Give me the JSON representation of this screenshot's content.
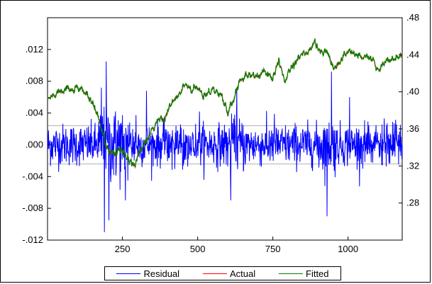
{
  "chart_data": {
    "type": "line",
    "title": "",
    "xlabel": "",
    "ylabel": "",
    "x_range": [
      1,
      1180
    ],
    "x_ticks": [
      "250",
      "500",
      "750",
      "1000"
    ],
    "left_axis": {
      "ylim": [
        -0.012,
        0.016
      ],
      "ticks": [
        ".012",
        ".008",
        ".004",
        ".000",
        "-.004",
        "-.008",
        "-.012"
      ]
    },
    "right_axis": {
      "ylim": [
        0.24,
        0.48
      ],
      "ticks": [
        ".48",
        ".44",
        ".40",
        ".36",
        ".32",
        ".28"
      ]
    },
    "residual_reference_lines": [
      0.0024,
      -0.0024
    ],
    "series": [
      {
        "name": "Residual",
        "axis": "left",
        "color": "#0000ff",
        "description": "high-frequency residuals, amplitude mostly within ±0.003, spikes to about +0.0105 near x=195 and -0.011 near x=190",
        "noise_sd": 0.0013,
        "notable_points": [
          {
            "x": 180,
            "y": 0.0072
          },
          {
            "x": 190,
            "y": -0.011
          },
          {
            "x": 196,
            "y": 0.0105
          },
          {
            "x": 205,
            "y": -0.0095
          },
          {
            "x": 260,
            "y": -0.007
          },
          {
            "x": 330,
            "y": 0.0068
          },
          {
            "x": 610,
            "y": -0.007
          },
          {
            "x": 630,
            "y": 0.0072
          },
          {
            "x": 945,
            "y": 0.0092
          },
          {
            "x": 930,
            "y": -0.009
          },
          {
            "x": 1005,
            "y": 0.006
          }
        ]
      },
      {
        "name": "Actual",
        "axis": "right",
        "color": "#ff0000",
        "anchors": [
          [
            1,
            0.392
          ],
          [
            20,
            0.396
          ],
          [
            50,
            0.404
          ],
          [
            75,
            0.401
          ],
          [
            100,
            0.403
          ],
          [
            130,
            0.398
          ],
          [
            150,
            0.388
          ],
          [
            170,
            0.372
          ],
          [
            190,
            0.348
          ],
          [
            210,
            0.334
          ],
          [
            240,
            0.337
          ],
          [
            260,
            0.33
          ],
          [
            290,
            0.322
          ],
          [
            310,
            0.336
          ],
          [
            340,
            0.352
          ],
          [
            370,
            0.37
          ],
          [
            390,
            0.372
          ],
          [
            410,
            0.385
          ],
          [
            440,
            0.398
          ],
          [
            460,
            0.408
          ],
          [
            480,
            0.401
          ],
          [
            500,
            0.404
          ],
          [
            520,
            0.397
          ],
          [
            550,
            0.403
          ],
          [
            580,
            0.395
          ],
          [
            600,
            0.378
          ],
          [
            620,
            0.392
          ],
          [
            640,
            0.413
          ],
          [
            660,
            0.42
          ],
          [
            690,
            0.416
          ],
          [
            720,
            0.421
          ],
          [
            750,
            0.416
          ],
          [
            770,
            0.431
          ],
          [
            790,
            0.412
          ],
          [
            810,
            0.427
          ],
          [
            840,
            0.44
          ],
          [
            870,
            0.443
          ],
          [
            890,
            0.454
          ],
          [
            910,
            0.441
          ],
          [
            930,
            0.445
          ],
          [
            950,
            0.424
          ],
          [
            975,
            0.434
          ],
          [
            1000,
            0.445
          ],
          [
            1025,
            0.44
          ],
          [
            1050,
            0.438
          ],
          [
            1080,
            0.436
          ],
          [
            1100,
            0.423
          ],
          [
            1125,
            0.433
          ],
          [
            1150,
            0.434
          ],
          [
            1180,
            0.44
          ]
        ]
      },
      {
        "name": "Fitted",
        "axis": "right",
        "color": "#008000",
        "anchors": [
          [
            1,
            0.392
          ],
          [
            20,
            0.396
          ],
          [
            50,
            0.404
          ],
          [
            75,
            0.401
          ],
          [
            100,
            0.403
          ],
          [
            130,
            0.398
          ],
          [
            150,
            0.388
          ],
          [
            170,
            0.372
          ],
          [
            190,
            0.348
          ],
          [
            210,
            0.334
          ],
          [
            240,
            0.337
          ],
          [
            260,
            0.33
          ],
          [
            290,
            0.322
          ],
          [
            310,
            0.336
          ],
          [
            340,
            0.352
          ],
          [
            370,
            0.37
          ],
          [
            390,
            0.372
          ],
          [
            410,
            0.385
          ],
          [
            440,
            0.398
          ],
          [
            460,
            0.408
          ],
          [
            480,
            0.401
          ],
          [
            500,
            0.404
          ],
          [
            520,
            0.397
          ],
          [
            550,
            0.403
          ],
          [
            580,
            0.395
          ],
          [
            600,
            0.378
          ],
          [
            620,
            0.392
          ],
          [
            640,
            0.413
          ],
          [
            660,
            0.42
          ],
          [
            690,
            0.416
          ],
          [
            720,
            0.421
          ],
          [
            750,
            0.416
          ],
          [
            770,
            0.431
          ],
          [
            790,
            0.412
          ],
          [
            810,
            0.427
          ],
          [
            840,
            0.44
          ],
          [
            870,
            0.443
          ],
          [
            890,
            0.454
          ],
          [
            910,
            0.441
          ],
          [
            930,
            0.445
          ],
          [
            950,
            0.424
          ],
          [
            975,
            0.434
          ],
          [
            1000,
            0.445
          ],
          [
            1025,
            0.44
          ],
          [
            1050,
            0.438
          ],
          [
            1080,
            0.436
          ],
          [
            1100,
            0.423
          ],
          [
            1125,
            0.433
          ],
          [
            1150,
            0.434
          ],
          [
            1180,
            0.44
          ]
        ]
      }
    ],
    "legend": {
      "placement": "bottom-center",
      "entries": [
        "Residual",
        "Actual",
        "Fitted"
      ]
    },
    "grid": false
  }
}
